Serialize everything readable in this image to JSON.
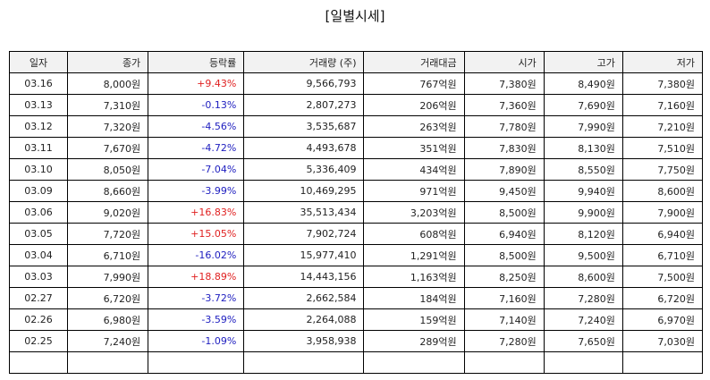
{
  "title": "[일별시세]",
  "columns": [
    "일자",
    "종가",
    "등락률",
    "거래량 (주)",
    "거래대금",
    "시가",
    "고가",
    "저가"
  ],
  "rows": [
    {
      "date": "03.16",
      "close": "8,000원",
      "change": "+9.43%",
      "dir": "up",
      "volume": "9,566,793",
      "amount": "767억원",
      "open": "7,380원",
      "high": "8,490원",
      "low": "7,380원"
    },
    {
      "date": "03.13",
      "close": "7,310원",
      "change": "-0.13%",
      "dir": "down",
      "volume": "2,807,273",
      "amount": "206억원",
      "open": "7,360원",
      "high": "7,690원",
      "low": "7,160원"
    },
    {
      "date": "03.12",
      "close": "7,320원",
      "change": "-4.56%",
      "dir": "down",
      "volume": "3,535,687",
      "amount": "263억원",
      "open": "7,780원",
      "high": "7,990원",
      "low": "7,210원"
    },
    {
      "date": "03.11",
      "close": "7,670원",
      "change": "-4.72%",
      "dir": "down",
      "volume": "4,493,678",
      "amount": "351억원",
      "open": "7,830원",
      "high": "8,130원",
      "low": "7,510원"
    },
    {
      "date": "03.10",
      "close": "8,050원",
      "change": "-7.04%",
      "dir": "down",
      "volume": "5,336,409",
      "amount": "434억원",
      "open": "7,890원",
      "high": "8,550원",
      "low": "7,750원"
    },
    {
      "date": "03.09",
      "close": "8,660원",
      "change": "-3.99%",
      "dir": "down",
      "volume": "10,469,295",
      "amount": "971억원",
      "open": "9,450원",
      "high": "9,940원",
      "low": "8,600원"
    },
    {
      "date": "03.06",
      "close": "9,020원",
      "change": "+16.83%",
      "dir": "up",
      "volume": "35,513,434",
      "amount": "3,203억원",
      "open": "8,500원",
      "high": "9,900원",
      "low": "7,900원"
    },
    {
      "date": "03.05",
      "close": "7,720원",
      "change": "+15.05%",
      "dir": "up",
      "volume": "7,902,724",
      "amount": "608억원",
      "open": "6,940원",
      "high": "8,120원",
      "low": "6,940원"
    },
    {
      "date": "03.04",
      "close": "6,710원",
      "change": "-16.02%",
      "dir": "down",
      "volume": "15,977,410",
      "amount": "1,291억원",
      "open": "8,500원",
      "high": "9,500원",
      "low": "6,710원"
    },
    {
      "date": "03.03",
      "close": "7,990원",
      "change": "+18.89%",
      "dir": "up",
      "volume": "14,443,156",
      "amount": "1,163억원",
      "open": "8,250원",
      "high": "8,600원",
      "low": "7,500원"
    },
    {
      "date": "02.27",
      "close": "6,720원",
      "change": "-3.72%",
      "dir": "down",
      "volume": "2,662,584",
      "amount": "184억원",
      "open": "7,160원",
      "high": "7,280원",
      "low": "6,720원"
    },
    {
      "date": "02.26",
      "close": "6,980원",
      "change": "-3.59%",
      "dir": "down",
      "volume": "2,264,088",
      "amount": "159억원",
      "open": "7,140원",
      "high": "7,240원",
      "low": "6,970원"
    },
    {
      "date": "02.25",
      "close": "7,240원",
      "change": "-1.09%",
      "dir": "down",
      "volume": "3,958,938",
      "amount": "289억원",
      "open": "7,280원",
      "high": "7,650원",
      "low": "7,030원"
    }
  ],
  "colors": {
    "up": "#e02020",
    "down": "#2020c0",
    "header_bg": "#f2f2f2"
  }
}
